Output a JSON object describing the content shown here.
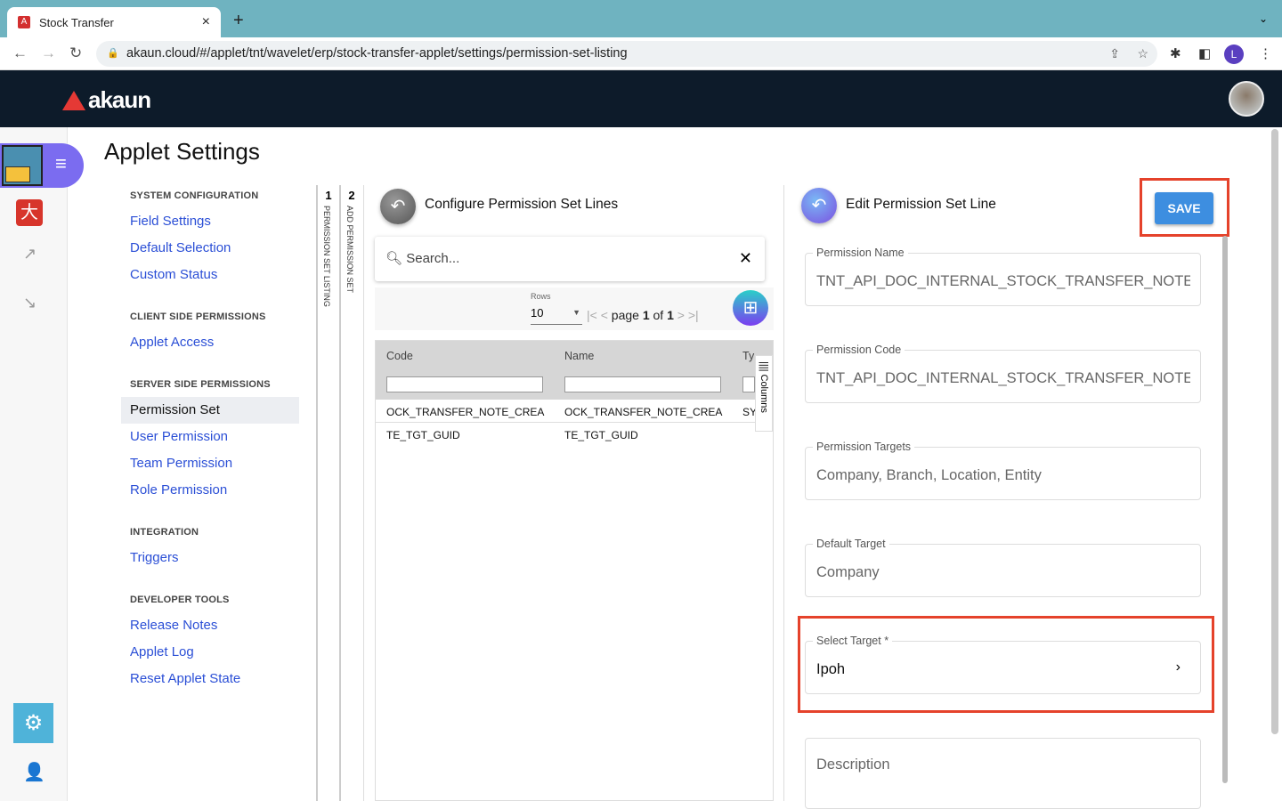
{
  "browser": {
    "tab_title": "Stock Transfer",
    "url": "akaun.cloud/#/applet/tnt/wavelet/erp/stock-transfer-applet/settings/permission-set-listing",
    "profile_initial": "L"
  },
  "header": {
    "logo_text": "akaun"
  },
  "page": {
    "title": "Applet Settings"
  },
  "menu": [
    {
      "section": "SYSTEM CONFIGURATION",
      "items": [
        "Field Settings",
        "Default Selection",
        "Custom Status"
      ]
    },
    {
      "section": "CLIENT SIDE PERMISSIONS",
      "items": [
        "Applet Access"
      ]
    },
    {
      "section": "SERVER SIDE PERMISSIONS",
      "items": [
        "Permission Set",
        "User Permission",
        "Team Permission",
        "Role Permission"
      ]
    },
    {
      "section": "INTEGRATION",
      "items": [
        "Triggers"
      ]
    },
    {
      "section": "DEVELOPER TOOLS",
      "items": [
        "Release Notes",
        "Applet Log",
        "Reset Applet State"
      ]
    }
  ],
  "active_menu_item": "Permission Set",
  "steps": [
    {
      "num": "1",
      "label": "PERMISSION SET LISTING"
    },
    {
      "num": "2",
      "label": "ADD PERMISSION SET"
    }
  ],
  "lines_panel": {
    "title": "Configure Permission Set Lines",
    "search_placeholder": "Search...",
    "rows_label": "Rows",
    "rows_value": "10",
    "page_word": "page",
    "page_current": "1",
    "page_of": "of",
    "page_total": "1",
    "columns_label": "Columns",
    "headers": [
      "Code",
      "Name",
      "Ty"
    ],
    "rows": [
      [
        "OCK_TRANSFER_NOTE_CREA",
        "OCK_TRANSFER_NOTE_CREA",
        "SY"
      ],
      [
        "TE_TGT_GUID",
        "TE_TGT_GUID",
        ""
      ]
    ]
  },
  "edit_panel": {
    "title": "Edit Permission Set Line",
    "save_label": "SAVE",
    "fields": [
      {
        "label": "Permission Name",
        "value": "TNT_API_DOC_INTERNAL_STOCK_TRANSFER_NOTE_C"
      },
      {
        "label": "Permission Code",
        "value": "TNT_API_DOC_INTERNAL_STOCK_TRANSFER_NOTE_C"
      },
      {
        "label": "Permission Targets",
        "value": "Company, Branch, Location, Entity"
      },
      {
        "label": "Default Target",
        "value": "Company"
      },
      {
        "label": "Select Target *",
        "value": "Ipoh"
      },
      {
        "label": "",
        "value": "Description"
      }
    ]
  },
  "colors": {
    "header": "#0d1b2a",
    "link": "#2b4fd6",
    "save": "#3d8ee0",
    "highlight": "#e5422b",
    "rail_accent": "#7b6cf0"
  }
}
